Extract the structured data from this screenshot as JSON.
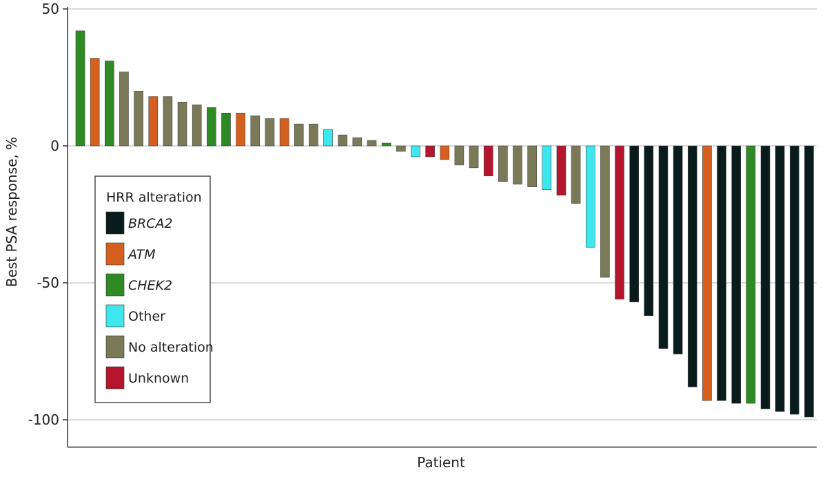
{
  "chart_data": {
    "type": "bar",
    "title": "",
    "xlabel": "Patient",
    "ylabel": "Best PSA response, %",
    "ylim": [
      -110,
      50
    ],
    "yticks": [
      50,
      0,
      -50,
      -100
    ],
    "ytick_labels": [
      "50",
      "0",
      "-50",
      "-100"
    ],
    "grid": true,
    "legend": {
      "title": "HRR alteration",
      "placement": "bottom-left",
      "entries": [
        {
          "key": "BRCA2",
          "label": "BRCA2",
          "italic": true,
          "color": "#0a1b1c"
        },
        {
          "key": "ATM",
          "label": "ATM",
          "italic": true,
          "color": "#d45f1f"
        },
        {
          "key": "CHEK2",
          "label": "CHEK2",
          "italic": true,
          "color": "#2e8b24"
        },
        {
          "key": "Other",
          "label": "Other",
          "italic": false,
          "color": "#3ee6ee"
        },
        {
          "key": "No alteration",
          "label": "No alteration",
          "italic": false,
          "color": "#7b7a58"
        },
        {
          "key": "Unknown",
          "label": "Unknown",
          "italic": false,
          "color": "#b5152d"
        }
      ]
    },
    "bars": [
      {
        "value": 42,
        "group": "CHEK2"
      },
      {
        "value": 32,
        "group": "ATM"
      },
      {
        "value": 31,
        "group": "CHEK2"
      },
      {
        "value": 27,
        "group": "No alteration"
      },
      {
        "value": 20,
        "group": "No alteration"
      },
      {
        "value": 18,
        "group": "ATM"
      },
      {
        "value": 18,
        "group": "No alteration"
      },
      {
        "value": 16,
        "group": "No alteration"
      },
      {
        "value": 15,
        "group": "No alteration"
      },
      {
        "value": 14,
        "group": "CHEK2"
      },
      {
        "value": 12,
        "group": "CHEK2"
      },
      {
        "value": 12,
        "group": "ATM"
      },
      {
        "value": 11,
        "group": "No alteration"
      },
      {
        "value": 10,
        "group": "No alteration"
      },
      {
        "value": 10,
        "group": "ATM"
      },
      {
        "value": 8,
        "group": "No alteration"
      },
      {
        "value": 8,
        "group": "No alteration"
      },
      {
        "value": 6,
        "group": "Other"
      },
      {
        "value": 4,
        "group": "No alteration"
      },
      {
        "value": 3,
        "group": "No alteration"
      },
      {
        "value": 2,
        "group": "No alteration"
      },
      {
        "value": 1,
        "group": "CHEK2"
      },
      {
        "value": -2,
        "group": "No alteration"
      },
      {
        "value": -4,
        "group": "Other"
      },
      {
        "value": -4,
        "group": "Unknown"
      },
      {
        "value": -5,
        "group": "ATM"
      },
      {
        "value": -7,
        "group": "No alteration"
      },
      {
        "value": -8,
        "group": "No alteration"
      },
      {
        "value": -11,
        "group": "Unknown"
      },
      {
        "value": -13,
        "group": "No alteration"
      },
      {
        "value": -14,
        "group": "No alteration"
      },
      {
        "value": -15,
        "group": "No alteration"
      },
      {
        "value": -16,
        "group": "Other"
      },
      {
        "value": -18,
        "group": "Unknown"
      },
      {
        "value": -21,
        "group": "No alteration"
      },
      {
        "value": -37,
        "group": "Other"
      },
      {
        "value": -48,
        "group": "No alteration"
      },
      {
        "value": -56,
        "group": "Unknown"
      },
      {
        "value": -57,
        "group": "BRCA2"
      },
      {
        "value": -62,
        "group": "BRCA2"
      },
      {
        "value": -74,
        "group": "BRCA2"
      },
      {
        "value": -76,
        "group": "BRCA2"
      },
      {
        "value": -88,
        "group": "BRCA2"
      },
      {
        "value": -93,
        "group": "ATM"
      },
      {
        "value": -93,
        "group": "BRCA2"
      },
      {
        "value": -94,
        "group": "BRCA2"
      },
      {
        "value": -94,
        "group": "CHEK2"
      },
      {
        "value": -96,
        "group": "BRCA2"
      },
      {
        "value": -97,
        "group": "BRCA2"
      },
      {
        "value": -98,
        "group": "BRCA2"
      },
      {
        "value": -99,
        "group": "BRCA2"
      }
    ]
  }
}
